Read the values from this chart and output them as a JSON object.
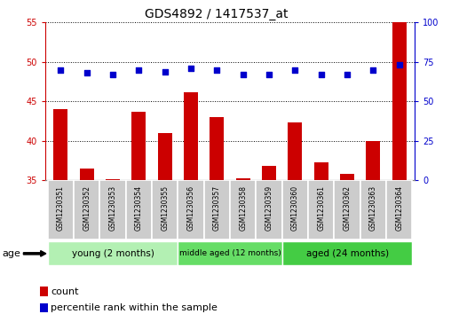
{
  "title": "GDS4892 / 1417537_at",
  "samples": [
    "GSM1230351",
    "GSM1230352",
    "GSM1230353",
    "GSM1230354",
    "GSM1230355",
    "GSM1230356",
    "GSM1230357",
    "GSM1230358",
    "GSM1230359",
    "GSM1230360",
    "GSM1230361",
    "GSM1230362",
    "GSM1230363",
    "GSM1230364"
  ],
  "counts": [
    44.0,
    36.5,
    35.2,
    43.7,
    41.0,
    46.2,
    43.0,
    35.3,
    36.8,
    42.3,
    37.3,
    35.8,
    40.0,
    55.0
  ],
  "percentile_ranks": [
    70,
    68,
    67,
    70,
    69,
    71,
    70,
    67,
    67,
    70,
    67,
    67,
    70,
    73
  ],
  "ylim_left": [
    35,
    55
  ],
  "ylim_right": [
    0,
    100
  ],
  "yticks_left": [
    35,
    40,
    45,
    50,
    55
  ],
  "yticks_right": [
    0,
    25,
    50,
    75,
    100
  ],
  "bar_color": "#cc0000",
  "dot_color": "#0000cc",
  "grid_color": "#000000",
  "groups": [
    {
      "label": "young (2 months)",
      "start": 0,
      "end": 4,
      "color": "#b3f0b3"
    },
    {
      "label": "middle aged (12 months)",
      "start": 5,
      "end": 8,
      "color": "#66dd66"
    },
    {
      "label": "aged (24 months)",
      "start": 9,
      "end": 13,
      "color": "#44cc44"
    }
  ],
  "sample_bg_color": "#cccccc",
  "sample_edge_color": "#ffffff",
  "xlabel_color": "#cc0000",
  "ylabel_right_color": "#0000cc",
  "background_plot": "#ffffff",
  "age_label": "age",
  "legend_count": "count",
  "legend_percentile": "percentile rank within the sample",
  "title_fontsize": 10,
  "tick_fontsize": 7,
  "label_fontsize": 8
}
